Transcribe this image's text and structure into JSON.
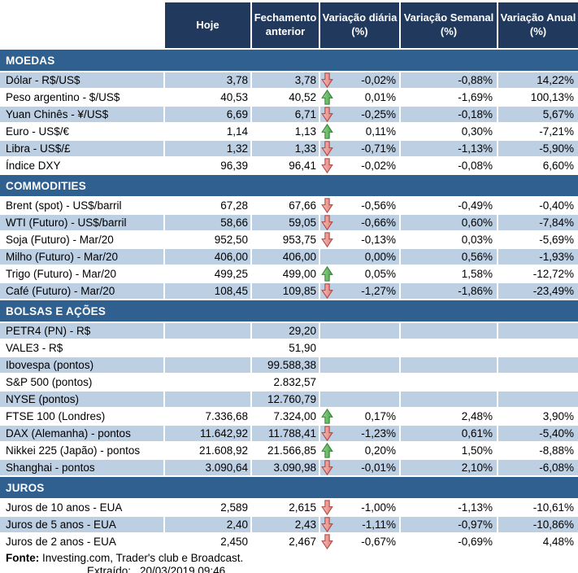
{
  "header": {
    "columns": [
      "Hoje",
      "Fechamento anterior",
      "Variação diária (%)",
      "Variação Semanal (%)",
      "Variação Anual (%)"
    ]
  },
  "colors": {
    "header_bg": "#20395C",
    "section_bg": "#30608F",
    "row_shaded_bg": "#BCCFE3",
    "arrow_up_fill": "#5FB55C",
    "arrow_up_stroke": "#358035",
    "arrow_down_fill": "#EA9B96",
    "arrow_down_stroke": "#AF4441"
  },
  "icons": {
    "up": "up-arrow-icon",
    "down": "down-arrow-icon"
  },
  "sections": [
    {
      "id": "moedas",
      "title": "MOEDAS",
      "first_row_shaded": true,
      "rows": [
        {
          "label": "Dólar - R$/US$",
          "hoje": "3,78",
          "prev": "3,78",
          "arrow": "down",
          "daily": "-0,02%",
          "weekly": "-0,88%",
          "annual": "14,22%"
        },
        {
          "label": "Peso argentino - $/US$",
          "hoje": "40,53",
          "prev": "40,52",
          "arrow": "up",
          "daily": "0,01%",
          "weekly": "-1,69%",
          "annual": "100,13%"
        },
        {
          "label": "Yuan Chinês - ¥/US$",
          "hoje": "6,69",
          "prev": "6,71",
          "arrow": "down",
          "daily": "-0,25%",
          "weekly": "-0,18%",
          "annual": "5,67%"
        },
        {
          "label": "Euro - US$/€",
          "hoje": "1,14",
          "prev": "1,13",
          "arrow": "up",
          "daily": "0,11%",
          "weekly": "0,30%",
          "annual": "-7,21%"
        },
        {
          "label": "Libra - US$/£",
          "hoje": "1,32",
          "prev": "1,33",
          "arrow": "down",
          "daily": "-0,71%",
          "weekly": "-1,13%",
          "annual": "-5,90%"
        },
        {
          "label": "Índice DXY",
          "hoje": "96,39",
          "prev": "96,41",
          "arrow": "down",
          "daily": "-0,02%",
          "weekly": "-0,08%",
          "annual": "6,60%"
        }
      ]
    },
    {
      "id": "commodities",
      "title": "COMMODITIES",
      "first_row_shaded": false,
      "rows": [
        {
          "label": "Brent (spot) - US$/barril",
          "hoje": "67,28",
          "prev": "67,66",
          "arrow": "down",
          "daily": "-0,56%",
          "weekly": "-0,49%",
          "annual": "-0,40%"
        },
        {
          "label": "WTI (Futuro) - US$/barril",
          "hoje": "58,66",
          "prev": "59,05",
          "arrow": "down",
          "daily": "-0,66%",
          "weekly": "0,60%",
          "annual": "-7,84%"
        },
        {
          "label": "Soja (Futuro) - Mar/20",
          "hoje": "952,50",
          "prev": "953,75",
          "arrow": "down",
          "daily": "-0,13%",
          "weekly": "0,03%",
          "annual": "-5,69%"
        },
        {
          "label": "Milho (Futuro) - Mar/20",
          "hoje": "406,00",
          "prev": "406,00",
          "arrow": "",
          "daily": "0,00%",
          "weekly": "0,56%",
          "annual": "-1,93%"
        },
        {
          "label": "Trigo (Futuro) - Mar/20",
          "hoje": "499,25",
          "prev": "499,00",
          "arrow": "up",
          "daily": "0,05%",
          "weekly": "1,58%",
          "annual": "-12,72%"
        },
        {
          "label": "Café (Futuro) - Mar/20",
          "hoje": "108,45",
          "prev": "109,85",
          "arrow": "down",
          "daily": "-1,27%",
          "weekly": "-1,86%",
          "annual": "-23,49%"
        }
      ]
    },
    {
      "id": "bolsas-e-acoes",
      "title": "BOLSAS E AÇÕES",
      "first_row_shaded": true,
      "rows": [
        {
          "label": "PETR4 (PN) - R$",
          "hoje": "",
          "prev": "29,20",
          "arrow": "",
          "daily": "",
          "weekly": "",
          "annual": ""
        },
        {
          "label": "VALE3 - R$",
          "hoje": "",
          "prev": "51,90",
          "arrow": "",
          "daily": "",
          "weekly": "",
          "annual": ""
        },
        {
          "label": "Ibovespa (pontos)",
          "hoje": "",
          "prev": "99.588,38",
          "arrow": "",
          "daily": "",
          "weekly": "",
          "annual": ""
        },
        {
          "label": "S&P 500 (pontos)",
          "hoje": "",
          "prev": "2.832,57",
          "arrow": "",
          "daily": "",
          "weekly": "",
          "annual": ""
        },
        {
          "label": "NYSE (pontos)",
          "hoje": "",
          "prev": "12.760,79",
          "arrow": "",
          "daily": "",
          "weekly": "",
          "annual": ""
        },
        {
          "label": "FTSE 100 (Londres)",
          "hoje": "7.336,68",
          "prev": "7.324,00",
          "arrow": "up",
          "daily": "0,17%",
          "weekly": "2,48%",
          "annual": "3,90%"
        },
        {
          "label": "DAX (Alemanha) - pontos",
          "hoje": "11.642,92",
          "prev": "11.788,41",
          "arrow": "down",
          "daily": "-1,23%",
          "weekly": "0,61%",
          "annual": "-5,40%"
        },
        {
          "label": "Nikkei 225 (Japão) - pontos",
          "hoje": "21.608,92",
          "prev": "21.566,85",
          "arrow": "up",
          "daily": "0,20%",
          "weekly": "1,50%",
          "annual": "-8,88%"
        },
        {
          "label": "Shanghai - pontos",
          "hoje": "3.090,64",
          "prev": "3.090,98",
          "arrow": "down",
          "daily": "-0,01%",
          "weekly": "2,10%",
          "annual": "-6,08%"
        }
      ]
    },
    {
      "id": "juros",
      "title": "JUROS",
      "first_row_shaded": false,
      "rows": [
        {
          "label": "Juros de 10 anos - EUA",
          "hoje": "2,589",
          "prev": "2,615",
          "arrow": "down",
          "daily": "-1,00%",
          "weekly": "-1,13%",
          "annual": "-10,61%"
        },
        {
          "label": "Juros de 5 anos - EUA",
          "hoje": "2,40",
          "prev": "2,43",
          "arrow": "down",
          "daily": "-1,11%",
          "weekly": "-0,97%",
          "annual": "-10,86%"
        },
        {
          "label": "Juros de 2 anos - EUA",
          "hoje": "2,450",
          "prev": "2,467",
          "arrow": "down",
          "daily": "-0,67%",
          "weekly": "-0,69%",
          "annual": "4,48%"
        }
      ]
    }
  ],
  "footer": {
    "fonte_label": "Fonte:",
    "fonte_text": "Investing.com, Trader's club e Broadcast.",
    "extraido_label": "Extraído:",
    "extraido_value": "20/03/2019 09:46"
  }
}
